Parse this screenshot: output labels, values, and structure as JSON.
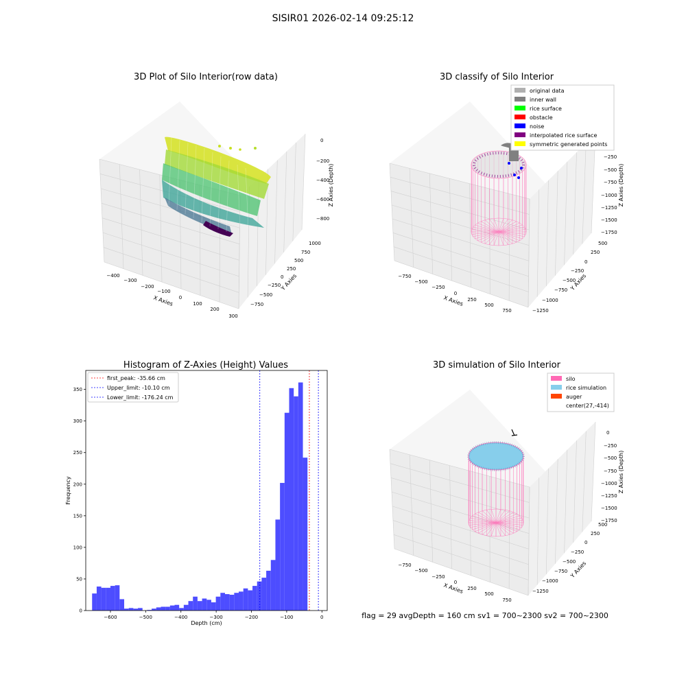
{
  "suptitle": "SISIR01 2026-02-14 09:25:12",
  "status_line": "flag = 29  avgDepth = 160 cm  sv1 = 700~2300  sv2 = 700~2300",
  "colors": {
    "histogram_bar": "#4d4dff",
    "peak_line": "#ff0000",
    "limit_line": "#0000ff",
    "silo": "#ff69b4",
    "rice_simulation": "#87ceeb",
    "auger": "#ff4500",
    "legend_original": "#b0b0b0",
    "legend_wall": "#808080",
    "legend_surface": "#00ff00",
    "legend_obstacle": "#ff0000",
    "legend_noise": "#0000ff",
    "legend_interp": "#800080",
    "legend_sym": "#ffff00"
  },
  "chart_data": [
    {
      "type": "scatter",
      "subtype": "3d",
      "title": "3D Plot of Silo Interior(row data)",
      "xlabel": "X Axies",
      "ylabel": "Y Axies",
      "zlabel": "Z Axies (Depth)",
      "x_ticks": [
        "−400",
        "−300",
        "−200",
        "−100",
        "0",
        "100",
        "200",
        "300"
      ],
      "y_ticks": [
        "−750",
        "−500",
        "−250",
        "0",
        "250",
        "500",
        "750",
        "1000"
      ],
      "z_ticks": [
        "−800",
        "−600",
        "−400",
        "−200",
        "0"
      ],
      "xlim": [
        -450,
        300
      ],
      "ylim": [
        -800,
        1000
      ],
      "zlim": [
        -900,
        0
      ],
      "colormap": "viridis",
      "grid": true
    },
    {
      "type": "scatter",
      "subtype": "3d",
      "title": "3D classify of Silo Interior",
      "xlabel": "X Axies",
      "ylabel": "Y Axies",
      "zlabel": "Z Axies (Depth)",
      "x_ticks": [
        "−750",
        "−500",
        "−250",
        "0",
        "250",
        "500",
        "750"
      ],
      "y_ticks": [
        "−1250",
        "−1000",
        "−750",
        "−500",
        "−250",
        "0",
        "250",
        "500"
      ],
      "z_ticks": [
        "−1750",
        "−1500",
        "−1250",
        "−1000",
        "−750",
        "−500",
        "−250"
      ],
      "legend": [
        "original data",
        "inner wall",
        "rice surface",
        "obstacle",
        "noise",
        "interpolated rice surface",
        "symmetric generated points"
      ],
      "legend_position": "top-right",
      "grid": true
    },
    {
      "type": "bar",
      "subtype": "histogram",
      "title": "Histogram of Z-Axies (Height) Values",
      "xlabel": "Depth (cm)",
      "ylabel": "Frequency",
      "xlim": [
        -670,
        15
      ],
      "ylim": [
        0,
        380
      ],
      "x_ticks": [
        {
          "v": -600,
          "t": "−600"
        },
        {
          "v": -500,
          "t": "−500"
        },
        {
          "v": -400,
          "t": "−400"
        },
        {
          "v": -300,
          "t": "−300"
        },
        {
          "v": -200,
          "t": "−200"
        },
        {
          "v": -100,
          "t": "−100"
        },
        {
          "v": 0,
          "t": "0"
        }
      ],
      "y_ticks": [
        0,
        50,
        100,
        150,
        200,
        250,
        300,
        350
      ],
      "bin_start": -652,
      "bin_width": 13,
      "counts": [
        27,
        38,
        36,
        36,
        39,
        40,
        18,
        3,
        4,
        3,
        4,
        0,
        1,
        3,
        5,
        6,
        6,
        8,
        9,
        4,
        9,
        15,
        22,
        15,
        19,
        17,
        13,
        22,
        28,
        26,
        25,
        28,
        30,
        35,
        32,
        39,
        46,
        52,
        63,
        80,
        144,
        202,
        313,
        352,
        339,
        361,
        242
      ],
      "lines": [
        {
          "value": -35.66,
          "label": "first_peak: -35.66 cm",
          "color": "#ff0000"
        },
        {
          "value": -10.1,
          "label": "Upper_limit: -10.10 cm",
          "color": "#0000ff"
        },
        {
          "value": -176.24,
          "label": "Lower_limit: -176.24 cm",
          "color": "#0000ff"
        }
      ],
      "legend_position": "top-left"
    },
    {
      "type": "scatter",
      "subtype": "3d",
      "title": "3D simulation of Silo Interior",
      "xlabel": "X Axies",
      "ylabel": "Y Axies",
      "zlabel": "Z Axies (Depth)",
      "x_ticks": [
        "−750",
        "−500",
        "−250",
        "0",
        "250",
        "500",
        "750"
      ],
      "y_ticks": [
        "−1250",
        "−1000",
        "−750",
        "−500",
        "−250",
        "0",
        "250",
        "500"
      ],
      "z_ticks": [
        "−1750",
        "−1500",
        "−1250",
        "−1000",
        "−750",
        "−500",
        "−250",
        "0"
      ],
      "legend": [
        "silo",
        "rice simulation",
        "auger",
        "center(27,-414)"
      ],
      "legend_position": "top-right",
      "grid": true
    }
  ]
}
